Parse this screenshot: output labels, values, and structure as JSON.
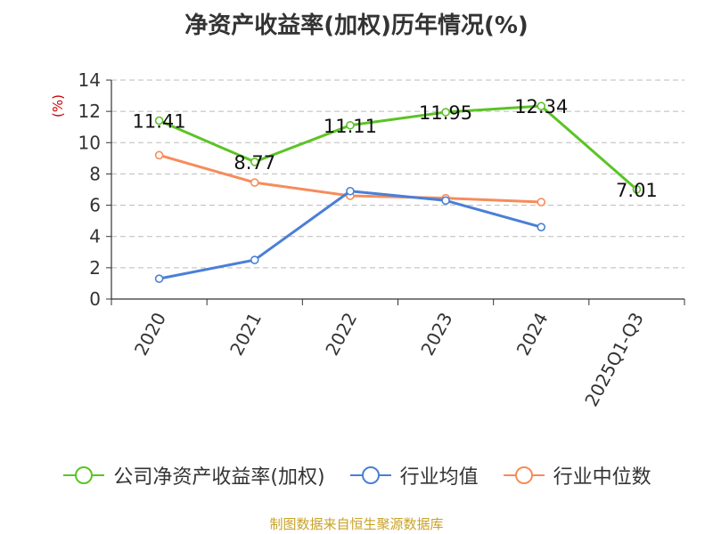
{
  "colors": {
    "roe": "#5bc424",
    "industry_avg": "#4a7fd6",
    "industry_median": "#f68c5a",
    "grid": "#bbbbbb",
    "axis": "#333333"
  },
  "chart_data": {
    "type": "line",
    "title": "净资产收益率(加权)历年情况(%)",
    "ylabel": "(%)",
    "xlabel": "",
    "categories": [
      "2020",
      "2021",
      "2022",
      "2023",
      "2024",
      "2025Q1-Q3"
    ],
    "ylim": [
      0,
      14
    ],
    "yticks": [
      0,
      2,
      4,
      6,
      8,
      10,
      12,
      14
    ],
    "grid": true,
    "legend_position": "bottom",
    "series": [
      {
        "name": "公司净资产收益率(加权)",
        "values": [
          11.41,
          8.77,
          11.11,
          11.95,
          12.34,
          7.01
        ],
        "labels": [
          "11.41",
          "8.77",
          "11.11",
          "11.95",
          "12.34",
          "7.01"
        ],
        "color_key": "roe"
      },
      {
        "name": "行业均值",
        "values": [
          1.3,
          2.5,
          6.9,
          6.3,
          4.6,
          null
        ],
        "color_key": "industry_avg"
      },
      {
        "name": "行业中位数",
        "values": [
          9.2,
          7.45,
          6.6,
          6.45,
          6.2,
          null
        ],
        "color_key": "industry_median"
      }
    ]
  },
  "footer": {
    "source": "制图数据来自恒生聚源数据库"
  }
}
